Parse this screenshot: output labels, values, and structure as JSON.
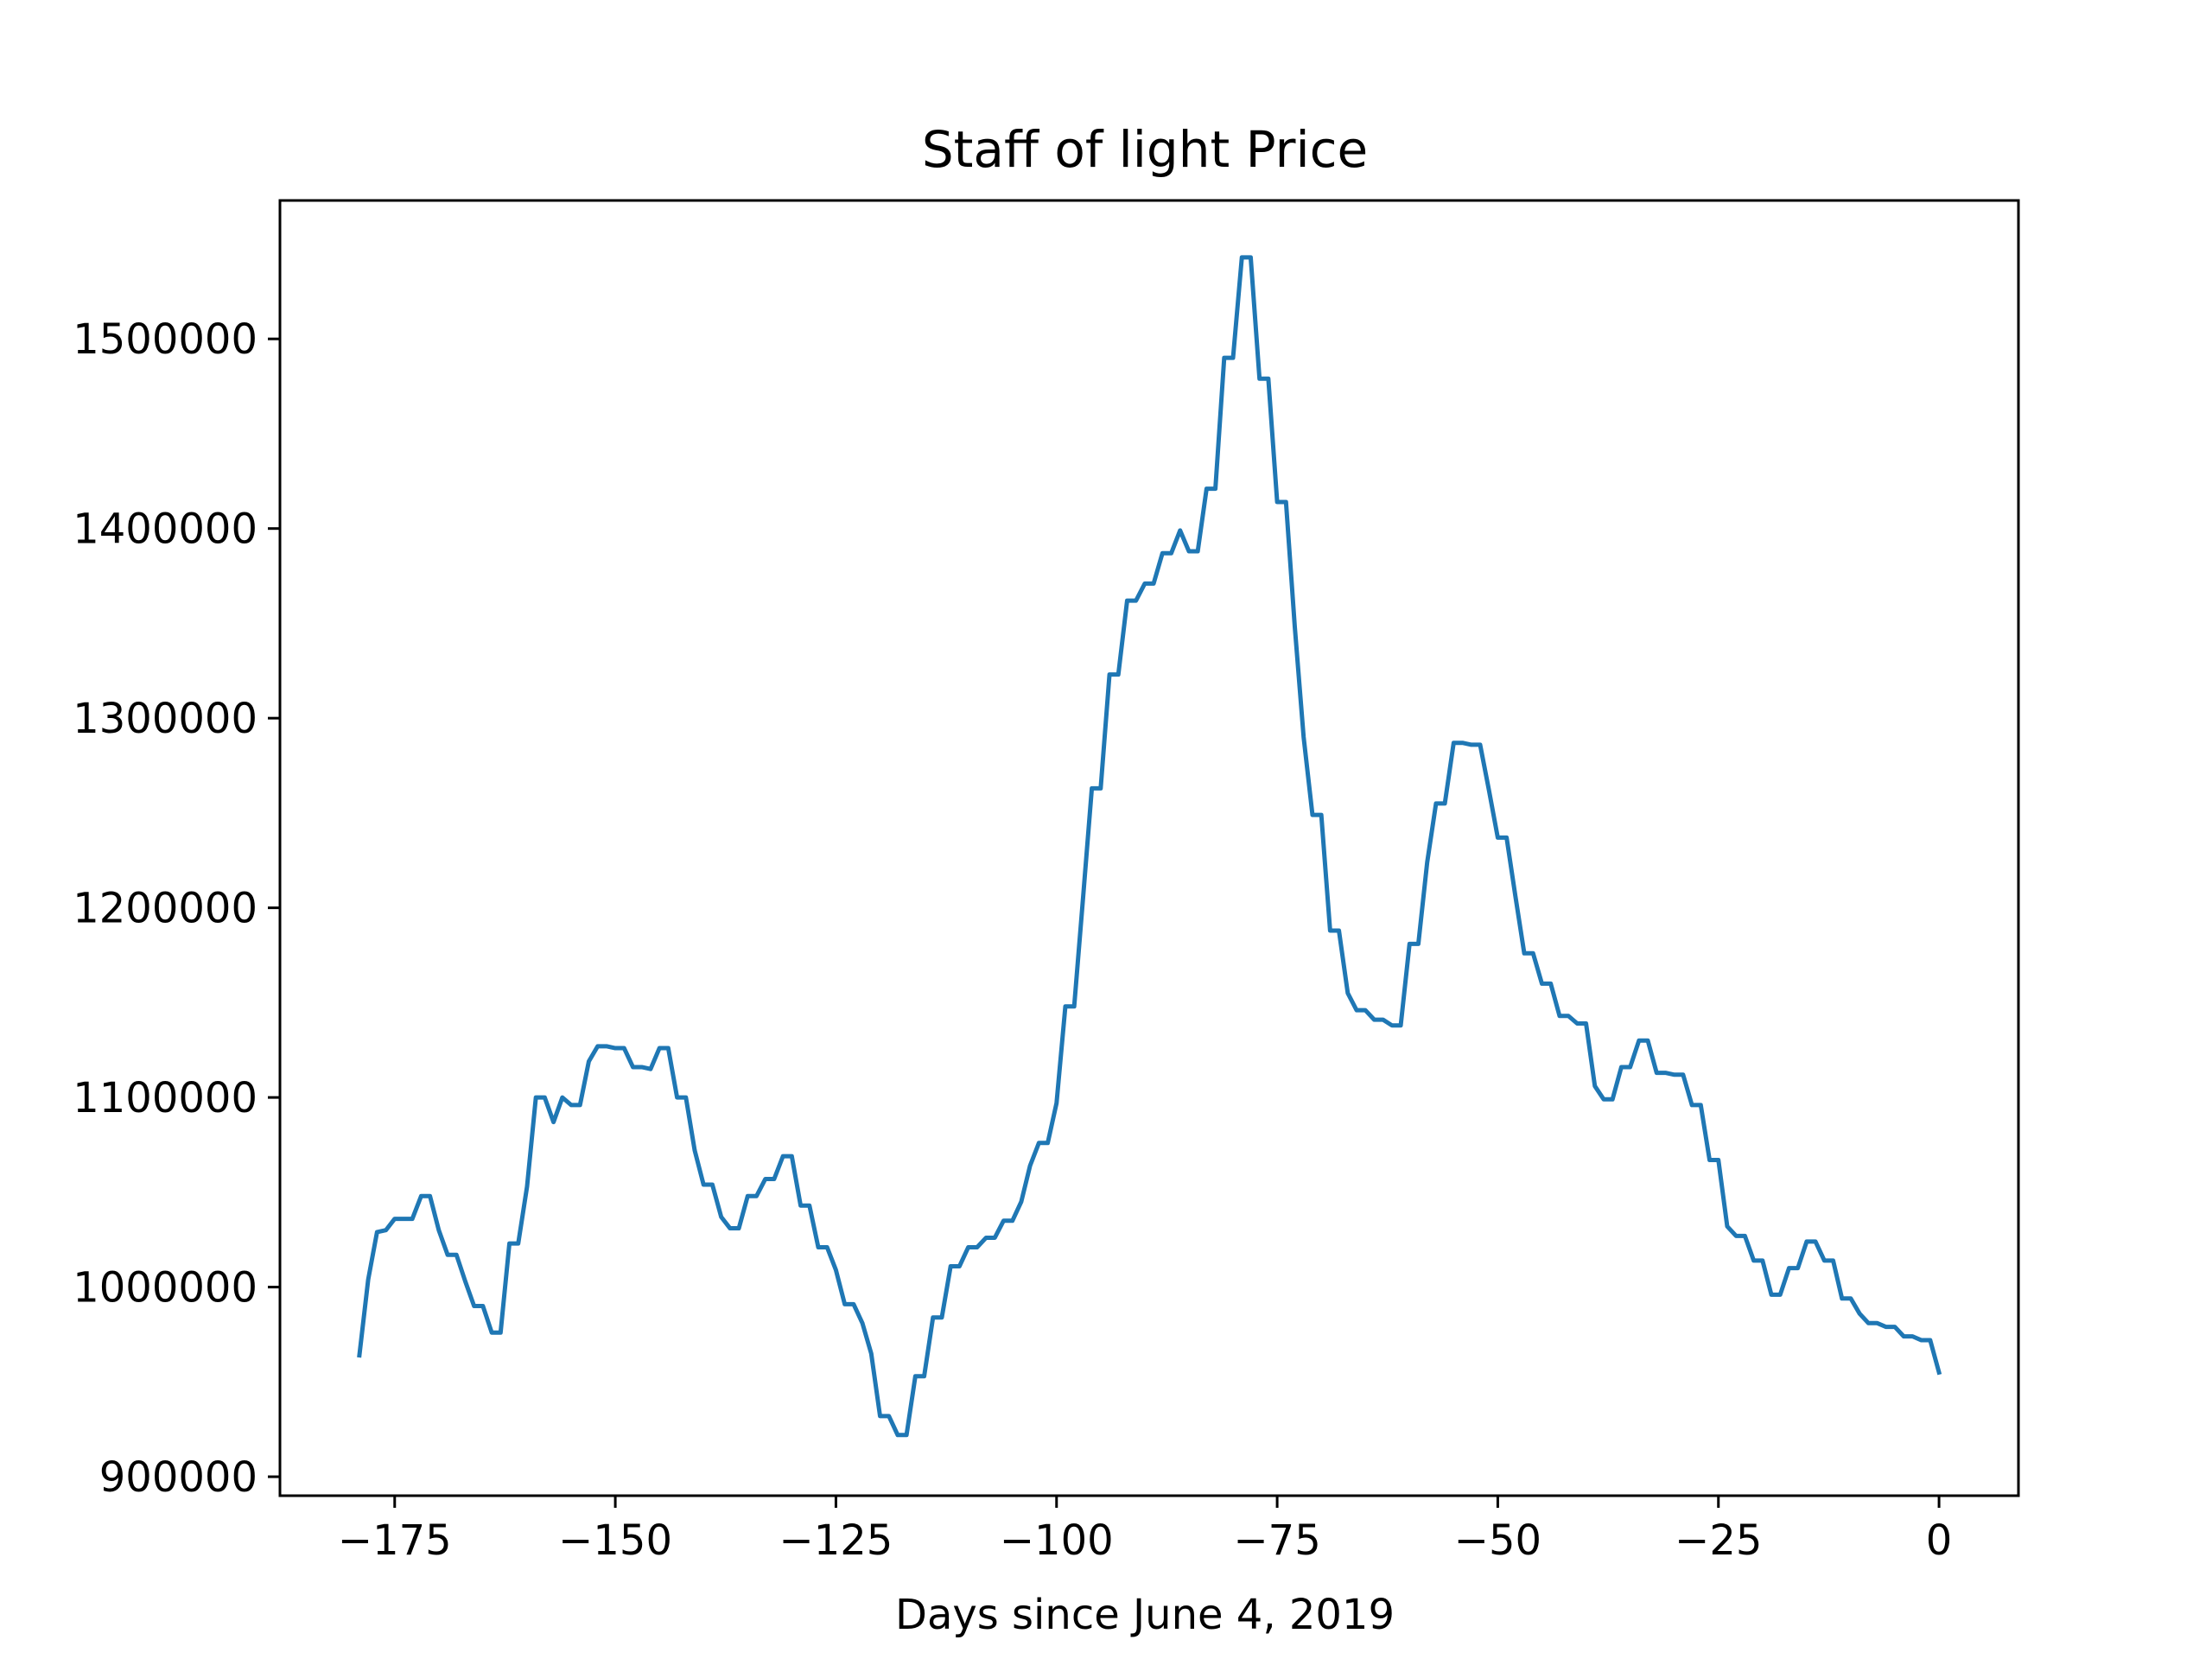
{
  "chart_data": {
    "type": "line",
    "title": "Staff of light Price",
    "xlabel": "Days since June 4, 2019",
    "ylabel": "",
    "xlim": [
      -188,
      9
    ],
    "ylim": [
      890000,
      1573000
    ],
    "xticks": [
      -175,
      -150,
      -125,
      -100,
      -75,
      -50,
      -25,
      0
    ],
    "xtick_labels": [
      "−175",
      "−150",
      "−125",
      "−100",
      "−75",
      "−50",
      "−25",
      "0"
    ],
    "yticks": [
      900000,
      1000000,
      1100000,
      1200000,
      1300000,
      1400000,
      1500000
    ],
    "ytick_labels": [
      "900000",
      "1000000",
      "1100000",
      "1200000",
      "1300000",
      "1400000",
      "1500000"
    ],
    "grid": false,
    "line_color": "#1f77b4",
    "series": [
      {
        "x": [
          -179,
          -178,
          -177,
          -176,
          -175,
          -174,
          -173,
          -172,
          -171,
          -170,
          -169,
          -168,
          -167,
          -166,
          -165,
          -164,
          -163,
          -162,
          -161,
          -160,
          -159,
          -158,
          -157,
          -156,
          -155,
          -154,
          -153,
          -152,
          -151,
          -150,
          -149,
          -148,
          -147,
          -146,
          -145,
          -144,
          -143,
          -142,
          -141,
          -140,
          -139,
          -138,
          -137,
          -136,
          -135,
          -134,
          -133,
          -132,
          -131,
          -130,
          -129,
          -128,
          -127,
          -126,
          -125,
          -124,
          -123,
          -122,
          -121,
          -120,
          -119,
          -118,
          -117,
          -116,
          -115,
          -114,
          -113,
          -112,
          -111,
          -110,
          -109,
          -108,
          -107,
          -106,
          -105,
          -104,
          -103,
          -102,
          -101,
          -100,
          -99,
          -98,
          -97,
          -96,
          -95,
          -94,
          -93,
          -92,
          -91,
          -90,
          -89,
          -88,
          -87,
          -86,
          -85,
          -84,
          -83,
          -82,
          -81,
          -80,
          -79,
          -78,
          -77,
          -76,
          -75,
          -74,
          -73,
          -72,
          -71,
          -70,
          -69,
          -68,
          -67,
          -66,
          -65,
          -64,
          -63,
          -62,
          -61,
          -60,
          -59,
          -58,
          -57,
          -56,
          -55,
          -54,
          -53,
          -52,
          -51,
          -50,
          -49,
          -48,
          -47,
          -46,
          -45,
          -44,
          -43,
          -42,
          -41,
          -40,
          -39,
          -38,
          -37,
          -36,
          -35,
          -34,
          -33,
          -32,
          -31,
          -30,
          -29,
          -28,
          -27,
          -26,
          -25,
          -24,
          -23,
          -22,
          -21,
          -20,
          -19,
          -18,
          -17,
          -16,
          -15,
          -14,
          -13,
          -12,
          -11,
          -10,
          -9,
          -8,
          -7,
          -6,
          -5,
          -4,
          -3,
          -2,
          -1,
          0
        ],
        "y": [
          964000,
          1004000,
          1029000,
          1030000,
          1036000,
          1036000,
          1036000,
          1048000,
          1048000,
          1030000,
          1017000,
          1017000,
          1003000,
          990000,
          990000,
          976000,
          976000,
          1023000,
          1023000,
          1053000,
          1100000,
          1100000,
          1087000,
          1100000,
          1096000,
          1096000,
          1119000,
          1127000,
          1127000,
          1126000,
          1126000,
          1116000,
          1116000,
          1115000,
          1126000,
          1126000,
          1100000,
          1100000,
          1072000,
          1054000,
          1054000,
          1037000,
          1031000,
          1031000,
          1048000,
          1048000,
          1057000,
          1057000,
          1069000,
          1069000,
          1043000,
          1043000,
          1021000,
          1021000,
          1009000,
          991000,
          991000,
          981000,
          965000,
          932000,
          932000,
          922000,
          922000,
          953000,
          953000,
          984000,
          984000,
          1011000,
          1011000,
          1021000,
          1021000,
          1026000,
          1026000,
          1035000,
          1035000,
          1045000,
          1064000,
          1076000,
          1076000,
          1097000,
          1148000,
          1148000,
          1205000,
          1263000,
          1263000,
          1323000,
          1323000,
          1362000,
          1362000,
          1371000,
          1371000,
          1387000,
          1387000,
          1399000,
          1388000,
          1388000,
          1421000,
          1421000,
          1490000,
          1490000,
          1543000,
          1543000,
          1479000,
          1479000,
          1414000,
          1414000,
          1348000,
          1290000,
          1249000,
          1249000,
          1188000,
          1188000,
          1155000,
          1146000,
          1146000,
          1141000,
          1141000,
          1138000,
          1138000,
          1181000,
          1181000,
          1224000,
          1255000,
          1255000,
          1287000,
          1287000,
          1286000,
          1286000,
          1262000,
          1237000,
          1237000,
          1206000,
          1176000,
          1176000,
          1160000,
          1160000,
          1143000,
          1143000,
          1139000,
          1139000,
          1106000,
          1099000,
          1099000,
          1116000,
          1116000,
          1130000,
          1130000,
          1113000,
          1113000,
          1112000,
          1112000,
          1096000,
          1096000,
          1067000,
          1067000,
          1032000,
          1027000,
          1027000,
          1014000,
          1014000,
          996000,
          996000,
          1010000,
          1010000,
          1024000,
          1024000,
          1014000,
          1014000,
          994000,
          994000,
          986000,
          981000,
          981000,
          979000,
          979000,
          974000,
          974000,
          972000,
          972000,
          955000
        ]
      }
    ]
  }
}
